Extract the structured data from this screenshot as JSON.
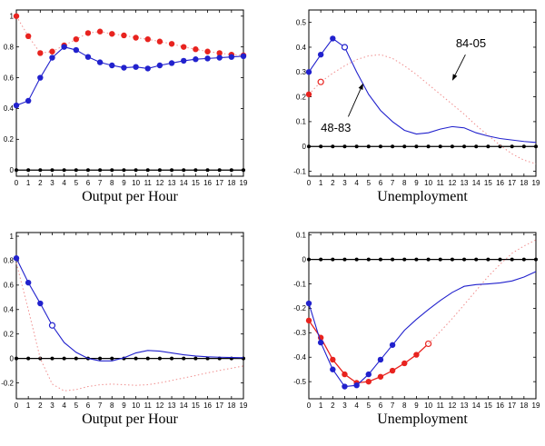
{
  "figure": {
    "background": "#ffffff",
    "colors": {
      "blue": "#2121cd",
      "red": "#e8231f",
      "red_light": "#f08e8e",
      "black": "#000000"
    }
  },
  "chart_data": [
    {
      "id": "top-left",
      "type": "line",
      "title": "Output per Hour",
      "xlim": [
        0,
        19
      ],
      "ylim": [
        -0.04,
        1.04
      ],
      "xticks": [
        0,
        1,
        2,
        3,
        4,
        5,
        6,
        7,
        8,
        9,
        10,
        11,
        12,
        13,
        14,
        15,
        16,
        17,
        18,
        19
      ],
      "yticks": [
        0,
        0.2,
        0.4,
        0.6,
        0.8,
        1
      ],
      "zero_line": {
        "y": 0
      },
      "series": [
        {
          "label": "84-05 red dotted",
          "color": "#e8231f",
          "line_color": "#f08e8e",
          "line": "dotted",
          "width": 1,
          "y": [
            1.0,
            0.87,
            0.76,
            0.77,
            0.81,
            0.85,
            0.89,
            0.9,
            0.885,
            0.875,
            0.86,
            0.85,
            0.835,
            0.82,
            0.8,
            0.785,
            0.77,
            0.76,
            0.75,
            0.745
          ],
          "filled": "all",
          "open": []
        },
        {
          "label": "48-83 blue solid",
          "color": "#2121cd",
          "line": "solid",
          "width": 1.1,
          "y": [
            0.42,
            0.45,
            0.6,
            0.73,
            0.8,
            0.78,
            0.735,
            0.7,
            0.68,
            0.665,
            0.67,
            0.66,
            0.68,
            0.695,
            0.71,
            0.72,
            0.725,
            0.73,
            0.735,
            0.74
          ],
          "filled": "all",
          "open": []
        }
      ],
      "annotations": []
    },
    {
      "id": "top-right",
      "type": "line",
      "title": "Unemployment",
      "xlim": [
        0,
        19
      ],
      "ylim": [
        -0.12,
        0.55
      ],
      "xticks": [
        0,
        1,
        2,
        3,
        4,
        5,
        6,
        7,
        8,
        9,
        10,
        11,
        12,
        13,
        14,
        15,
        16,
        17,
        18,
        19
      ],
      "yticks": [
        -0.1,
        0,
        0.1,
        0.2,
        0.3,
        0.4,
        0.5
      ],
      "zero_line": {
        "y": 0
      },
      "series": [
        {
          "label": "84-05 red dotted",
          "color": "#e8231f",
          "line_color": "#f08e8e",
          "line": "dotted",
          "width": 1,
          "y": [
            0.21,
            0.26,
            0.295,
            0.325,
            0.35,
            0.365,
            0.37,
            0.355,
            0.325,
            0.29,
            0.25,
            0.21,
            0.17,
            0.13,
            0.085,
            0.045,
            0.005,
            -0.03,
            -0.055,
            -0.07
          ],
          "filled": [
            0
          ],
          "open": [
            1
          ]
        },
        {
          "label": "48-83 blue solid",
          "color": "#2121cd",
          "line": "solid",
          "width": 1.1,
          "y": [
            0.3,
            0.37,
            0.435,
            0.4,
            0.3,
            0.21,
            0.145,
            0.1,
            0.065,
            0.05,
            0.055,
            0.07,
            0.08,
            0.075,
            0.055,
            0.042,
            0.032,
            0.026,
            0.02,
            0.016
          ],
          "filled": [
            0,
            1,
            2
          ],
          "open": [
            3
          ]
        }
      ],
      "annotations": [
        {
          "text": "84-05",
          "x": 12.3,
          "y": 0.4,
          "ax1": 13.1,
          "ay1": 0.37,
          "ax2": 12.0,
          "ay2": 0.265
        },
        {
          "text": "48-83",
          "x": 1.0,
          "y": 0.06,
          "ax1": 3.3,
          "ay1": 0.12,
          "ax2": 4.55,
          "ay2": 0.255
        }
      ]
    },
    {
      "id": "bottom-left",
      "type": "line",
      "title": "Output per Hour",
      "xlim": [
        0,
        19
      ],
      "ylim": [
        -0.33,
        1.03
      ],
      "xticks": [
        0,
        1,
        2,
        3,
        4,
        5,
        6,
        7,
        8,
        9,
        10,
        11,
        12,
        13,
        14,
        15,
        16,
        17,
        18,
        19
      ],
      "yticks": [
        -0.2,
        0,
        0.2,
        0.4,
        0.6,
        0.8,
        1
      ],
      "zero_line": {
        "y": 0
      },
      "series": [
        {
          "label": "84-05 red dotted",
          "color": "#e8231f",
          "line_color": "#f08e8e",
          "line": "dotted",
          "width": 1,
          "y": [
            0.78,
            0.4,
            0.0,
            -0.21,
            -0.265,
            -0.255,
            -0.23,
            -0.215,
            -0.21,
            -0.215,
            -0.22,
            -0.215,
            -0.2,
            -0.18,
            -0.16,
            -0.14,
            -0.118,
            -0.098,
            -0.08,
            -0.062
          ],
          "filled": [],
          "open": []
        },
        {
          "label": "48-83 blue solid",
          "color": "#2121cd",
          "line": "solid",
          "width": 1.1,
          "y": [
            0.82,
            0.62,
            0.45,
            0.27,
            0.13,
            0.05,
            0.0,
            -0.02,
            -0.02,
            0.005,
            0.045,
            0.065,
            0.06,
            0.045,
            0.03,
            0.02,
            0.013,
            0.01,
            0.008,
            0.006
          ],
          "filled": [
            0,
            1,
            2
          ],
          "open": [
            3
          ]
        }
      ],
      "annotations": []
    },
    {
      "id": "bottom-right",
      "type": "line",
      "title": "Unemployment",
      "xlim": [
        0,
        19
      ],
      "ylim": [
        -0.57,
        0.11
      ],
      "xticks": [
        0,
        1,
        2,
        3,
        4,
        5,
        6,
        7,
        8,
        9,
        10,
        11,
        12,
        13,
        14,
        15,
        16,
        17,
        18,
        19
      ],
      "yticks": [
        -0.5,
        -0.4,
        -0.3,
        -0.2,
        -0.1,
        0,
        0.1
      ],
      "zero_line": {
        "y": 0
      },
      "series": [
        {
          "label": "red solid with markers",
          "color": "#e8231f",
          "line": "solid",
          "width": 1.3,
          "y": [
            -0.25,
            -0.32,
            -0.41,
            -0.47,
            -0.505,
            -0.5,
            -0.48,
            -0.455,
            -0.425,
            -0.39,
            -0.345
          ],
          "filled": [
            0,
            1,
            2,
            3,
            4,
            5,
            6,
            7,
            8,
            9
          ],
          "open": [
            10
          ]
        },
        {
          "label": "red dotted tail",
          "color": "#e8231f",
          "line_color": "#f08e8e",
          "line": "dotted",
          "width": 1,
          "x0": 10,
          "y": [
            -0.345,
            -0.295,
            -0.242,
            -0.185,
            -0.127,
            -0.07,
            -0.02,
            0.025,
            0.055,
            0.08
          ],
          "filled": [],
          "open": []
        },
        {
          "label": "blue solid",
          "color": "#2121cd",
          "line": "solid",
          "width": 1.1,
          "y": [
            -0.18,
            -0.34,
            -0.45,
            -0.52,
            -0.515,
            -0.47,
            -0.41,
            -0.35,
            -0.29,
            -0.245,
            -0.205,
            -0.168,
            -0.135,
            -0.11,
            -0.103,
            -0.1,
            -0.096,
            -0.088,
            -0.072,
            -0.05
          ],
          "filled": [
            0,
            1,
            2,
            3,
            4,
            5,
            6,
            7
          ],
          "open": []
        }
      ],
      "annotations": []
    }
  ]
}
